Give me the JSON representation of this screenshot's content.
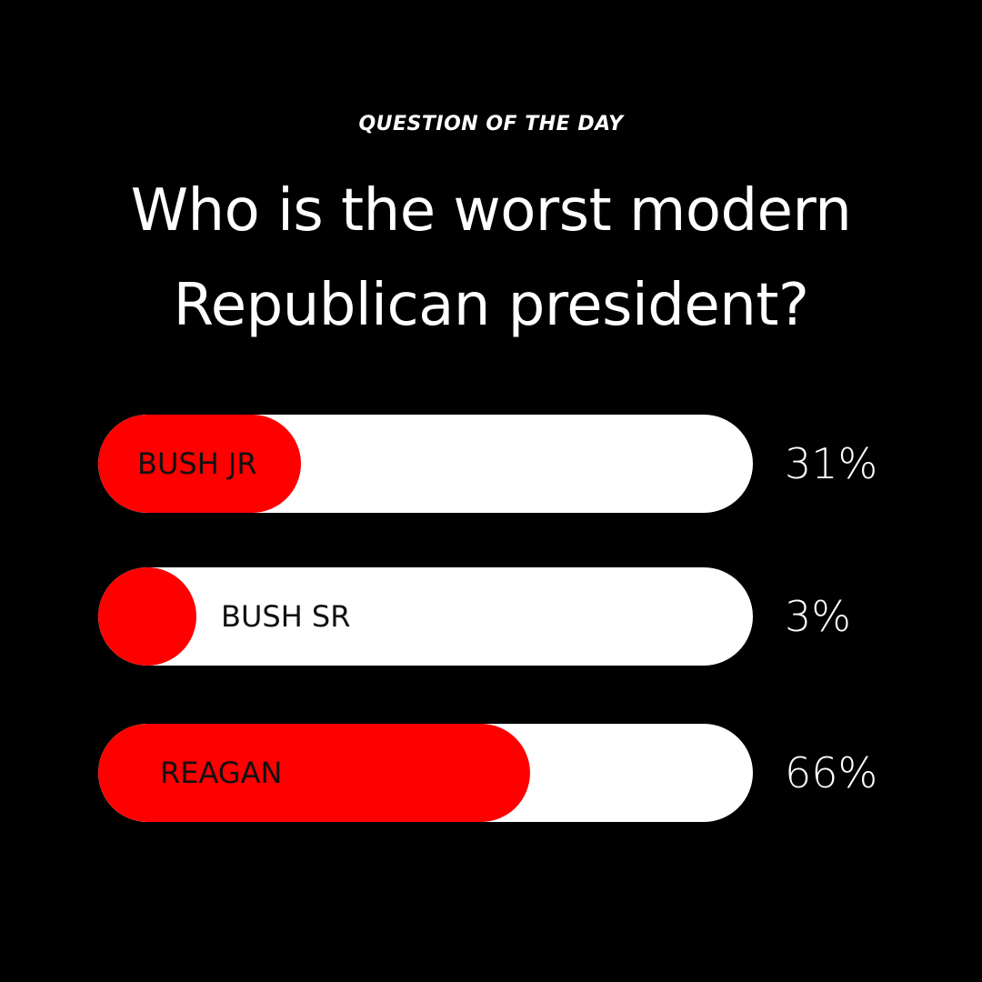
{
  "header": {
    "kicker": "QUESTION OF THE DAY",
    "question_line1": "Who is the worst modern",
    "question_line2": "Republican president?"
  },
  "colors": {
    "background": "#000000",
    "accent": "#ff0000",
    "track": "#ffffff",
    "text_on_track": "#111111"
  },
  "chart_data": {
    "type": "bar",
    "categories": [
      "BUSH JR",
      "BUSH SR",
      "REAGAN"
    ],
    "values": [
      31,
      3,
      66
    ],
    "value_labels": [
      "31%",
      "3%",
      "66%"
    ],
    "ylim": [
      0,
      100
    ]
  }
}
